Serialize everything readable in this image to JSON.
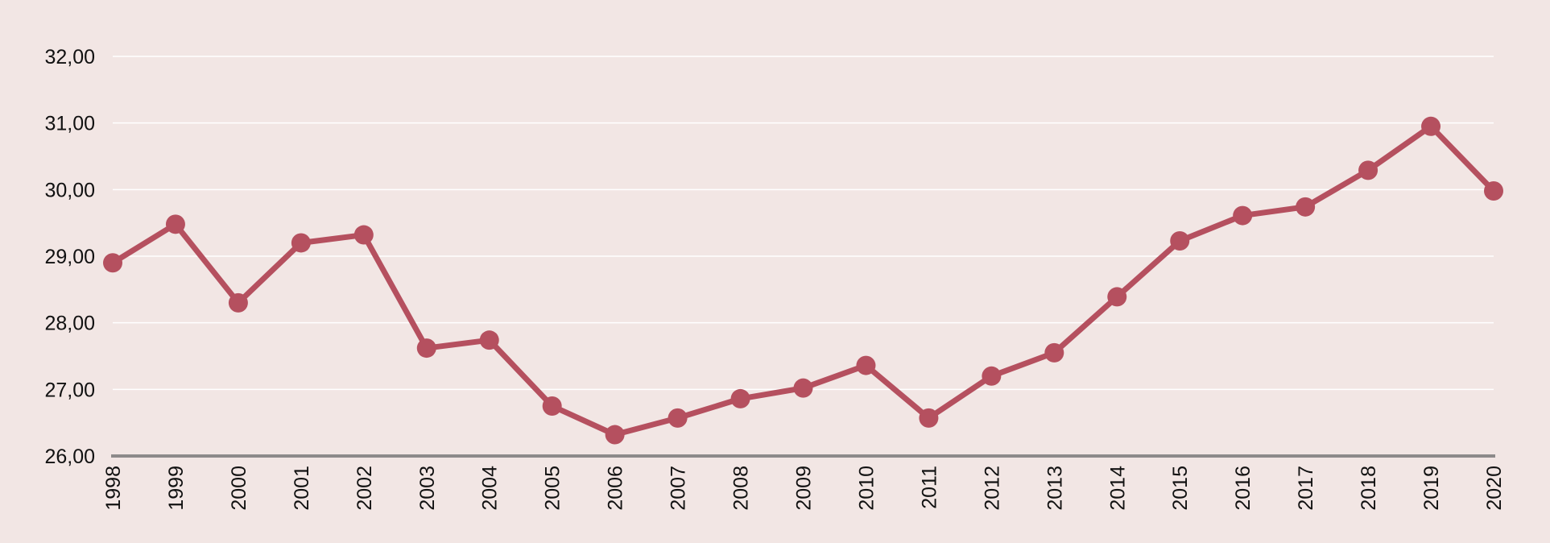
{
  "chart_data": {
    "type": "line",
    "title": "",
    "xlabel": "",
    "ylabel": "",
    "x": [
      "1998",
      "1999",
      "2000",
      "2001",
      "2002",
      "2003",
      "2004",
      "2005",
      "2006",
      "2007",
      "2008",
      "2009",
      "2010",
      "2011",
      "2012",
      "2013",
      "2014",
      "2015",
      "2016",
      "2017",
      "2018",
      "2019",
      "2020"
    ],
    "series": [
      {
        "color": "#b5505f",
        "values": [
          28.9,
          29.48,
          28.3,
          29.2,
          29.32,
          27.62,
          27.74,
          26.75,
          26.32,
          26.57,
          26.86,
          27.02,
          27.36,
          26.57,
          27.2,
          27.55,
          28.39,
          29.23,
          29.61,
          29.74,
          30.29,
          30.95,
          29.98
        ]
      }
    ],
    "ylim": [
      26,
      32
    ],
    "yticks": [
      "26,00",
      "27,00",
      "28,00",
      "29,00",
      "30,00",
      "31,00",
      "32,00"
    ],
    "grid": true,
    "colors": {
      "background": "#f2e6e4",
      "gridline": "#ffffff",
      "axis": "#8d8a8a"
    }
  }
}
